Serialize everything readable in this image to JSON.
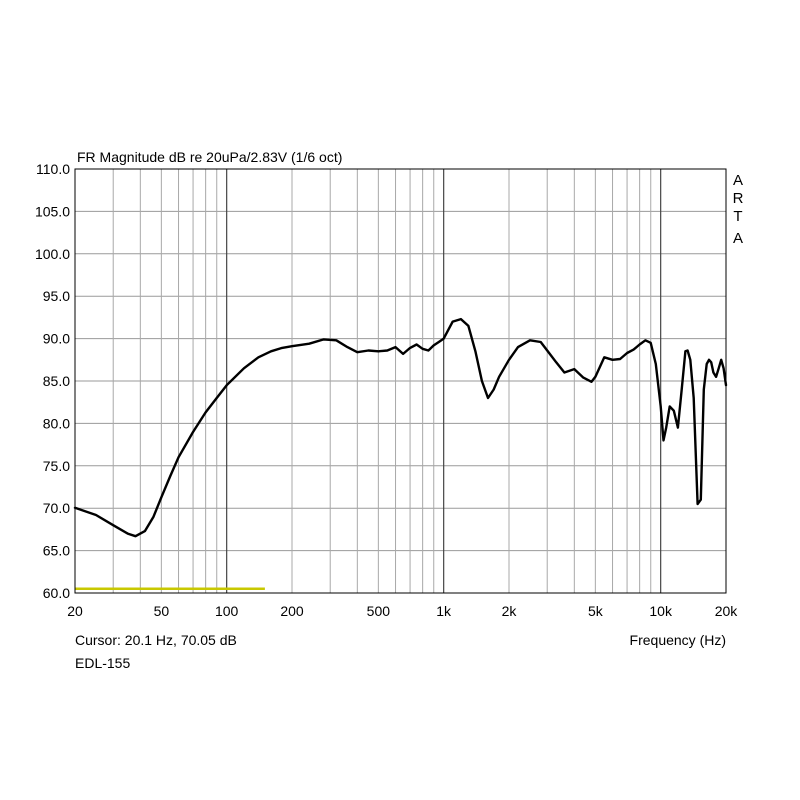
{
  "chart_data": {
    "type": "line",
    "title": "FR Magnitude dB re 20uPa/2.83V (1/6 oct)",
    "xlabel": "Frequency (Hz)",
    "ylabel": "",
    "x_scale": "log",
    "xlim": [
      20,
      20000
    ],
    "ylim": [
      60,
      110
    ],
    "grid": true,
    "y_ticks": [
      60,
      65,
      70,
      75,
      80,
      85,
      90,
      95,
      100,
      105,
      110
    ],
    "y_tick_labels": [
      "60.0",
      "65.0",
      "70.0",
      "75.0",
      "80.0",
      "85.0",
      "90.0",
      "95.0",
      "100.0",
      "105.0",
      "110.0"
    ],
    "x_ticks": [
      20,
      50,
      100,
      200,
      500,
      1000,
      2000,
      5000,
      10000,
      20000
    ],
    "x_tick_labels": [
      "20",
      "50",
      "100",
      "200",
      "500",
      "1k",
      "2k",
      "5k",
      "10k",
      "20k"
    ],
    "series": [
      {
        "color": "#000000",
        "x": [
          20,
          25,
          30,
          35,
          38,
          42,
          46,
          50,
          55,
          60,
          70,
          80,
          90,
          100,
          120,
          140,
          160,
          180,
          200,
          240,
          280,
          320,
          360,
          400,
          450,
          500,
          550,
          600,
          650,
          700,
          750,
          800,
          850,
          900,
          950,
          1000,
          1100,
          1200,
          1300,
          1400,
          1500,
          1600,
          1700,
          1800,
          2000,
          2200,
          2500,
          2800,
          3000,
          3300,
          3600,
          4000,
          4400,
          4800,
          5000,
          5500,
          6000,
          6500,
          7000,
          7500,
          8000,
          8500,
          9000,
          9500,
          10000,
          10300,
          10600,
          11000,
          11500,
          12000,
          12500,
          13000,
          13300,
          13700,
          14200,
          14800,
          15300,
          15800,
          16300,
          16700,
          17100,
          17500,
          18000,
          18500,
          19000,
          19500,
          20000
        ],
        "y": [
          70.05,
          69.2,
          68.0,
          67.0,
          66.7,
          67.3,
          69.0,
          71.3,
          73.8,
          76.0,
          79.0,
          81.3,
          83.0,
          84.5,
          86.5,
          87.8,
          88.5,
          88.9,
          89.1,
          89.4,
          89.9,
          89.8,
          89.0,
          88.4,
          88.6,
          88.5,
          88.6,
          89.0,
          88.2,
          88.9,
          89.3,
          88.8,
          88.6,
          89.2,
          89.6,
          90.0,
          92.0,
          92.3,
          91.5,
          88.5,
          85.0,
          83.0,
          84.0,
          85.5,
          87.5,
          89.0,
          89.8,
          89.6,
          88.6,
          87.2,
          86.0,
          86.4,
          85.4,
          84.9,
          85.5,
          87.8,
          87.5,
          87.6,
          88.3,
          88.7,
          89.3,
          89.8,
          89.5,
          87.0,
          82.0,
          78.0,
          79.5,
          82.0,
          81.5,
          79.5,
          84.0,
          88.5,
          88.6,
          87.5,
          83.0,
          70.5,
          71.0,
          84.0,
          87.0,
          87.5,
          87.2,
          86.0,
          85.5,
          86.5,
          87.5,
          86.5,
          84.5
        ]
      }
    ],
    "annotations": [
      {
        "x": [
          20,
          150
        ],
        "y": [
          60.5,
          60.5
        ],
        "color": "#c8c800"
      }
    ],
    "side_label": [
      "A",
      "R",
      "T",
      "A"
    ],
    "cursor_text": "Cursor: 20.1 Hz, 70.05 dB",
    "caption": "EDL-155"
  }
}
